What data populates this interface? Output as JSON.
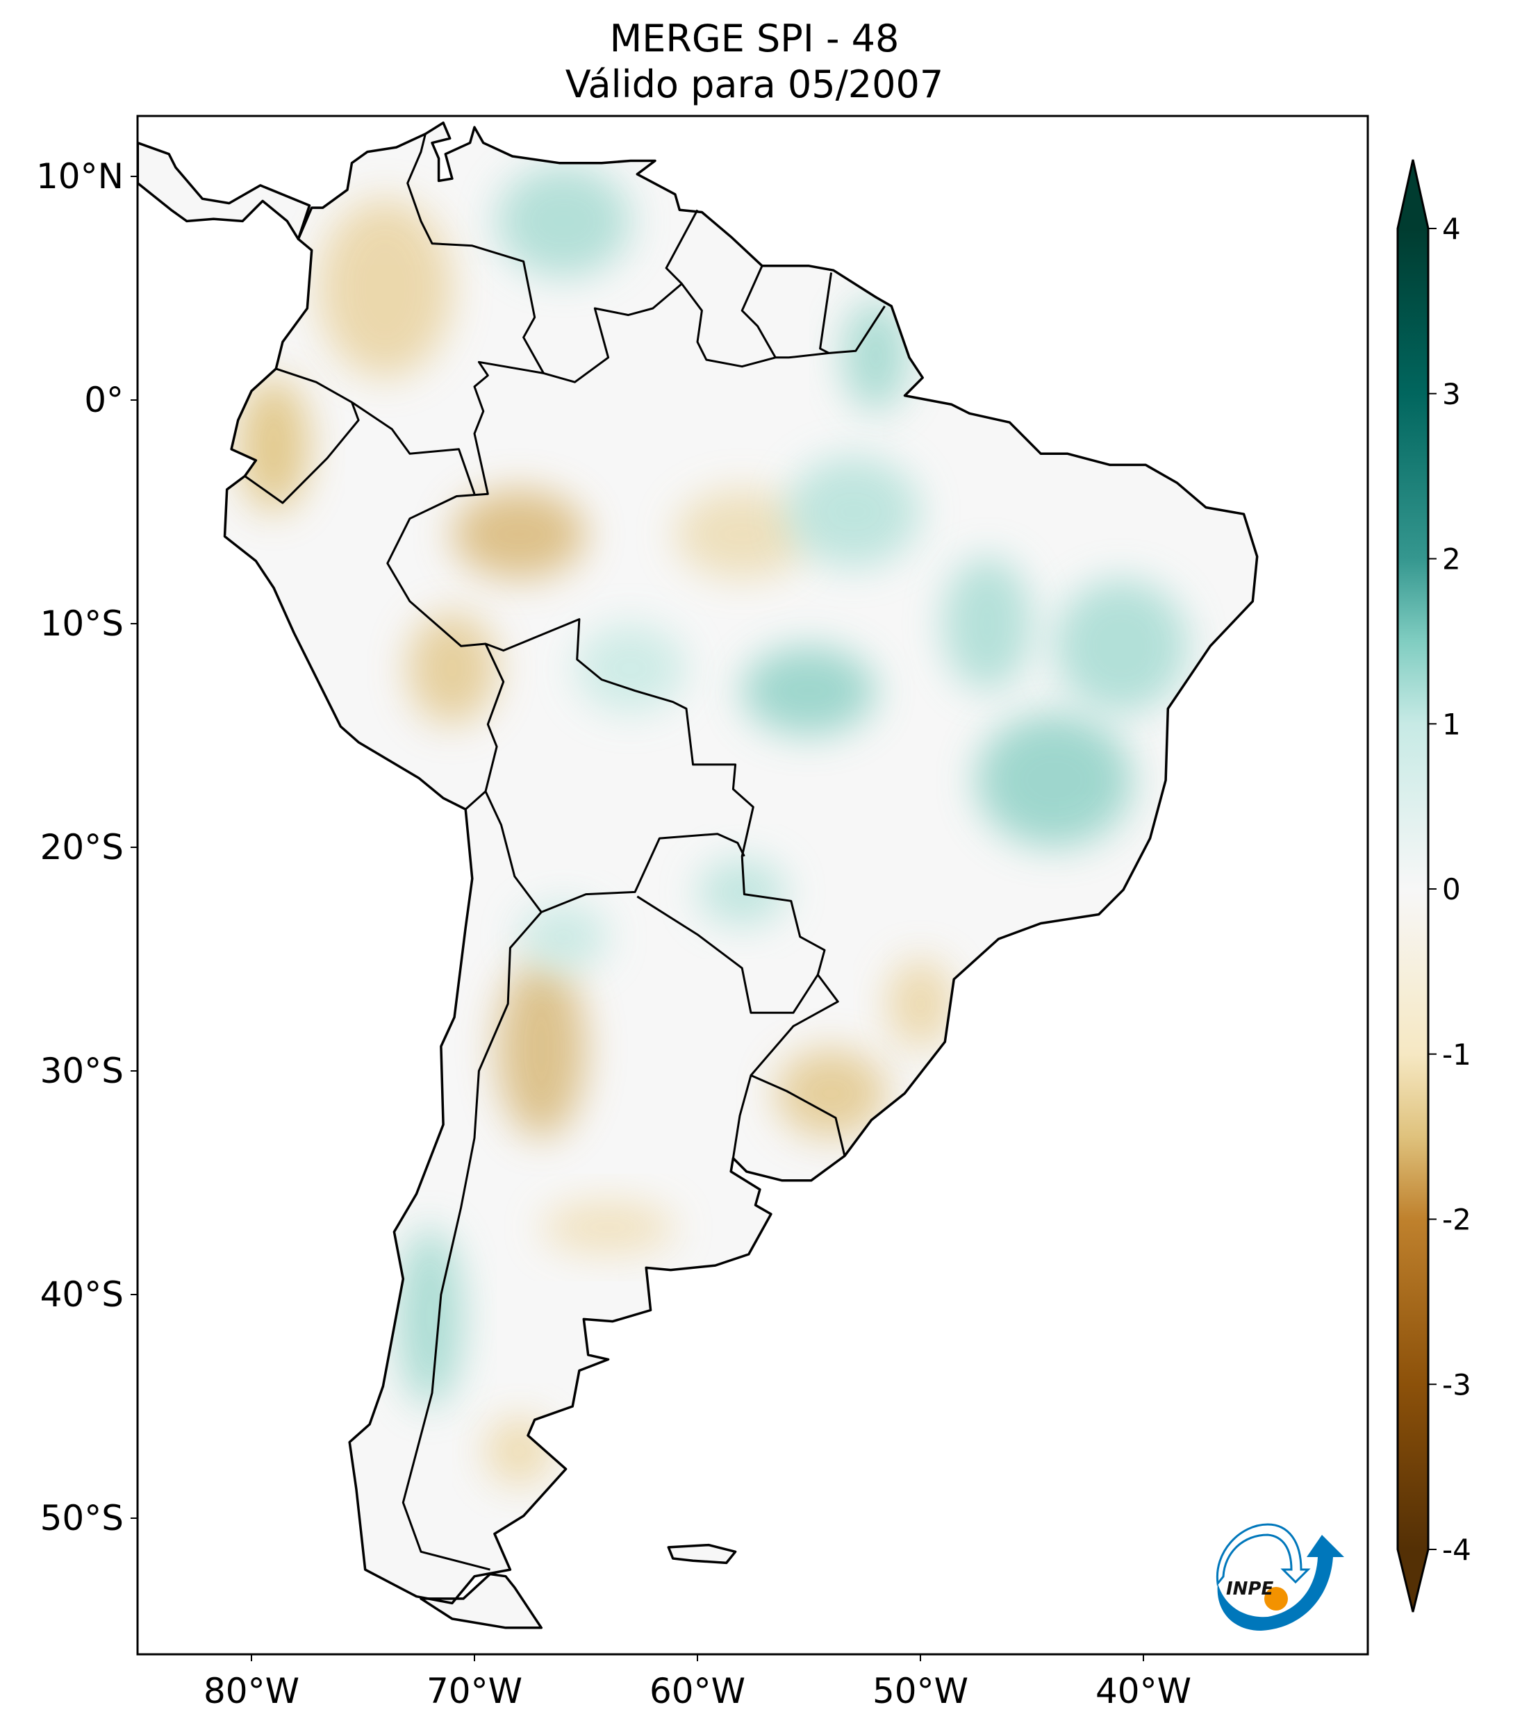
{
  "title": {
    "line1": "MERGE   SPI - 48",
    "line2": "Válido para 05/2007"
  },
  "map": {
    "extent": {
      "lon": [
        -85.1,
        -30.0
      ],
      "lat": [
        -56.1,
        12.7
      ]
    },
    "lat_ticks": [
      {
        "value": 10,
        "label": "10°N"
      },
      {
        "value": 0,
        "label": "0°"
      },
      {
        "value": -10,
        "label": "10°S"
      },
      {
        "value": -20,
        "label": "20°S"
      },
      {
        "value": -30,
        "label": "30°S"
      },
      {
        "value": -40,
        "label": "40°S"
      },
      {
        "value": -50,
        "label": "50°S"
      }
    ],
    "lon_ticks": [
      {
        "value": -80,
        "label": "80°W"
      },
      {
        "value": -70,
        "label": "70°W"
      },
      {
        "value": -60,
        "label": "60°W"
      },
      {
        "value": -50,
        "label": "50°W"
      },
      {
        "value": -40,
        "label": "40°W"
      }
    ],
    "land_color": "#f7f7f7",
    "border_color": "#000000"
  },
  "colorbar": {
    "colormap": "BrBG",
    "range": [
      -4,
      4
    ],
    "extend": "both",
    "ticks": [
      {
        "value": 4,
        "label": "4"
      },
      {
        "value": 3,
        "label": "3"
      },
      {
        "value": 2,
        "label": "2"
      },
      {
        "value": 1,
        "label": "1"
      },
      {
        "value": 0,
        "label": "0"
      },
      {
        "value": -1,
        "label": "-1"
      },
      {
        "value": -2,
        "label": "-2"
      },
      {
        "value": -3,
        "label": "-3"
      },
      {
        "value": -4,
        "label": "-4"
      }
    ],
    "stops": [
      {
        "value": -4,
        "color": "#543005"
      },
      {
        "value": -3,
        "color": "#8c510a"
      },
      {
        "value": -2,
        "color": "#bf812d"
      },
      {
        "value": -1.5,
        "color": "#dfc27d"
      },
      {
        "value": -1,
        "color": "#f6e8c3"
      },
      {
        "value": 0,
        "color": "#f7f7f7"
      },
      {
        "value": 1,
        "color": "#c7eae5"
      },
      {
        "value": 1.5,
        "color": "#80cdc1"
      },
      {
        "value": 2,
        "color": "#35978f"
      },
      {
        "value": 3,
        "color": "#01665e"
      },
      {
        "value": 4,
        "color": "#003c30"
      }
    ]
  },
  "logo": {
    "text": "INPE",
    "blue": "#0077bb",
    "orange": "#f39200"
  }
}
